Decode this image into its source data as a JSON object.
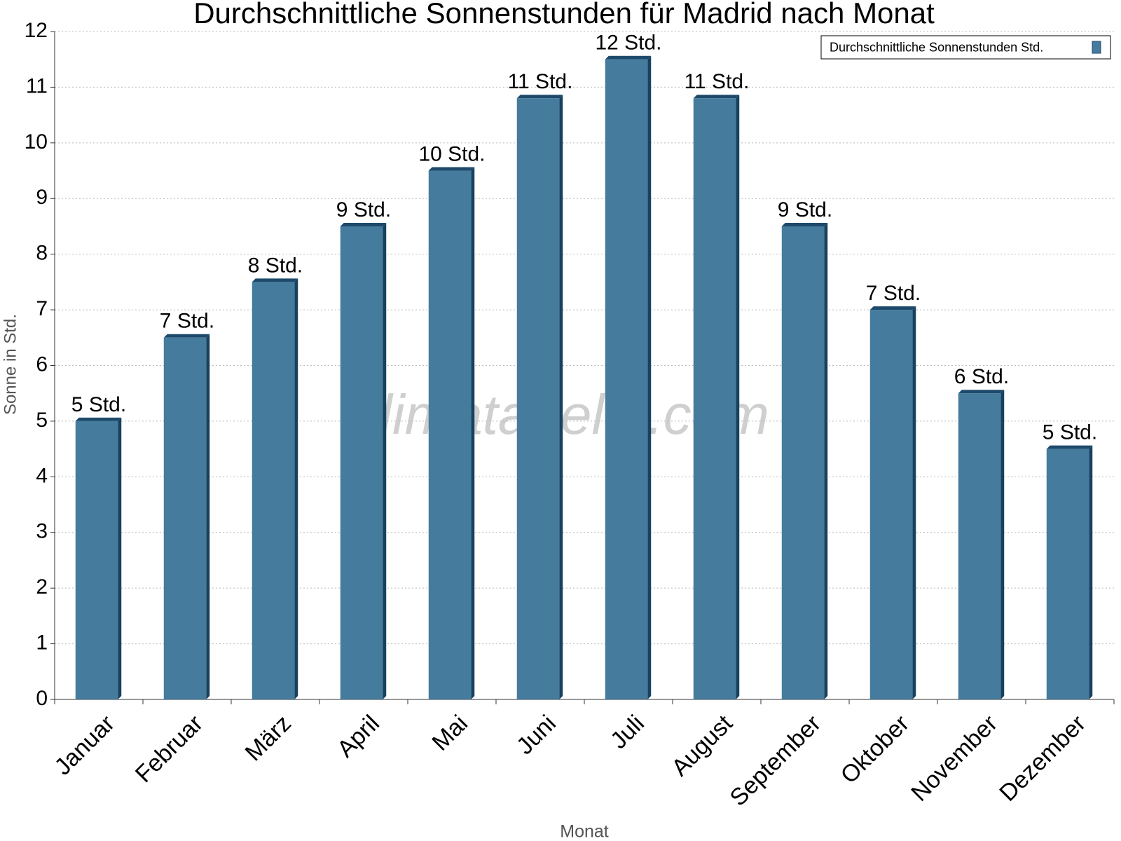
{
  "chart_data": {
    "type": "bar",
    "title": "Durchschnittliche Sonnenstunden für Madrid nach Monat",
    "x_label": "Monat",
    "y_label": "Sonne in Std.",
    "watermark": "klimatabelle.com",
    "categories": [
      "Januar",
      "Februar",
      "März",
      "April",
      "Mai",
      "Juni",
      "Juli",
      "August",
      "September",
      "Oktober",
      "November",
      "Dezember"
    ],
    "series": [
      {
        "name": "Durchschnittliche Sonnenstunden Std.",
        "color": "#457b9d",
        "values": [
          5.0,
          6.5,
          7.5,
          8.5,
          9.5,
          10.8,
          11.5,
          10.8,
          8.5,
          7.0,
          5.5,
          4.5
        ],
        "value_labels": [
          "5 Std.",
          "7 Std.",
          "8 Std.",
          "9 Std.",
          "10 Std.",
          "11 Std.",
          "12 Std.",
          "11 Std.",
          "9 Std.",
          "7 Std.",
          "6 Std.",
          "5 Std."
        ]
      }
    ],
    "ylim": [
      0,
      12
    ],
    "yticks": [
      0,
      1,
      2,
      3,
      4,
      5,
      6,
      7,
      8,
      9,
      10,
      11,
      12
    ],
    "grid": true,
    "legend": "top-right"
  }
}
